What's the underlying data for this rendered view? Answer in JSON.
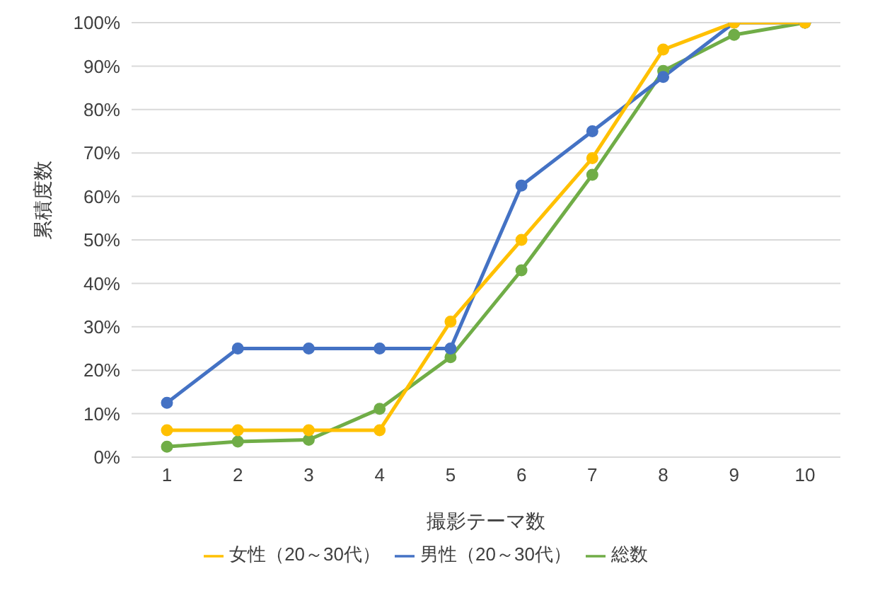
{
  "chart_data": {
    "type": "line",
    "xlabel": "撮影テーマ数",
    "ylabel": "累積度数",
    "categories": [
      "1",
      "2",
      "3",
      "4",
      "5",
      "6",
      "7",
      "8",
      "9",
      "10"
    ],
    "series": [
      {
        "name": "総数",
        "color": "#70ad47",
        "values": [
          2.4,
          3.6,
          4,
          11.1,
          23,
          43,
          65,
          88.9,
          97.2,
          100
        ]
      },
      {
        "name": "男性（20～30代）",
        "color": "#4472c4",
        "values": [
          12.5,
          25,
          25,
          25,
          25,
          62.5,
          75,
          87.5,
          100,
          100
        ]
      },
      {
        "name": "女性（20～30代）",
        "color": "#ffc000",
        "values": [
          6.2,
          6.2,
          6.2,
          6.2,
          31.2,
          50,
          68.8,
          93.8,
          100,
          100
        ]
      }
    ],
    "ylim": [
      0,
      100
    ],
    "yticks": [
      {
        "value": 0,
        "label": "0%"
      },
      {
        "value": 10,
        "label": "10%"
      },
      {
        "value": 20,
        "label": "20%"
      },
      {
        "value": 30,
        "label": "30%"
      },
      {
        "value": 40,
        "label": "40%"
      },
      {
        "value": 50,
        "label": "50%"
      },
      {
        "value": 60,
        "label": "60%"
      },
      {
        "value": 70,
        "label": "70%"
      },
      {
        "value": 80,
        "label": "80%"
      },
      {
        "value": 90,
        "label": "90%"
      },
      {
        "value": 100,
        "label": "100%"
      }
    ],
    "grid": "y",
    "legend": "bottom",
    "marker": "circle",
    "line_style": "solid"
  }
}
